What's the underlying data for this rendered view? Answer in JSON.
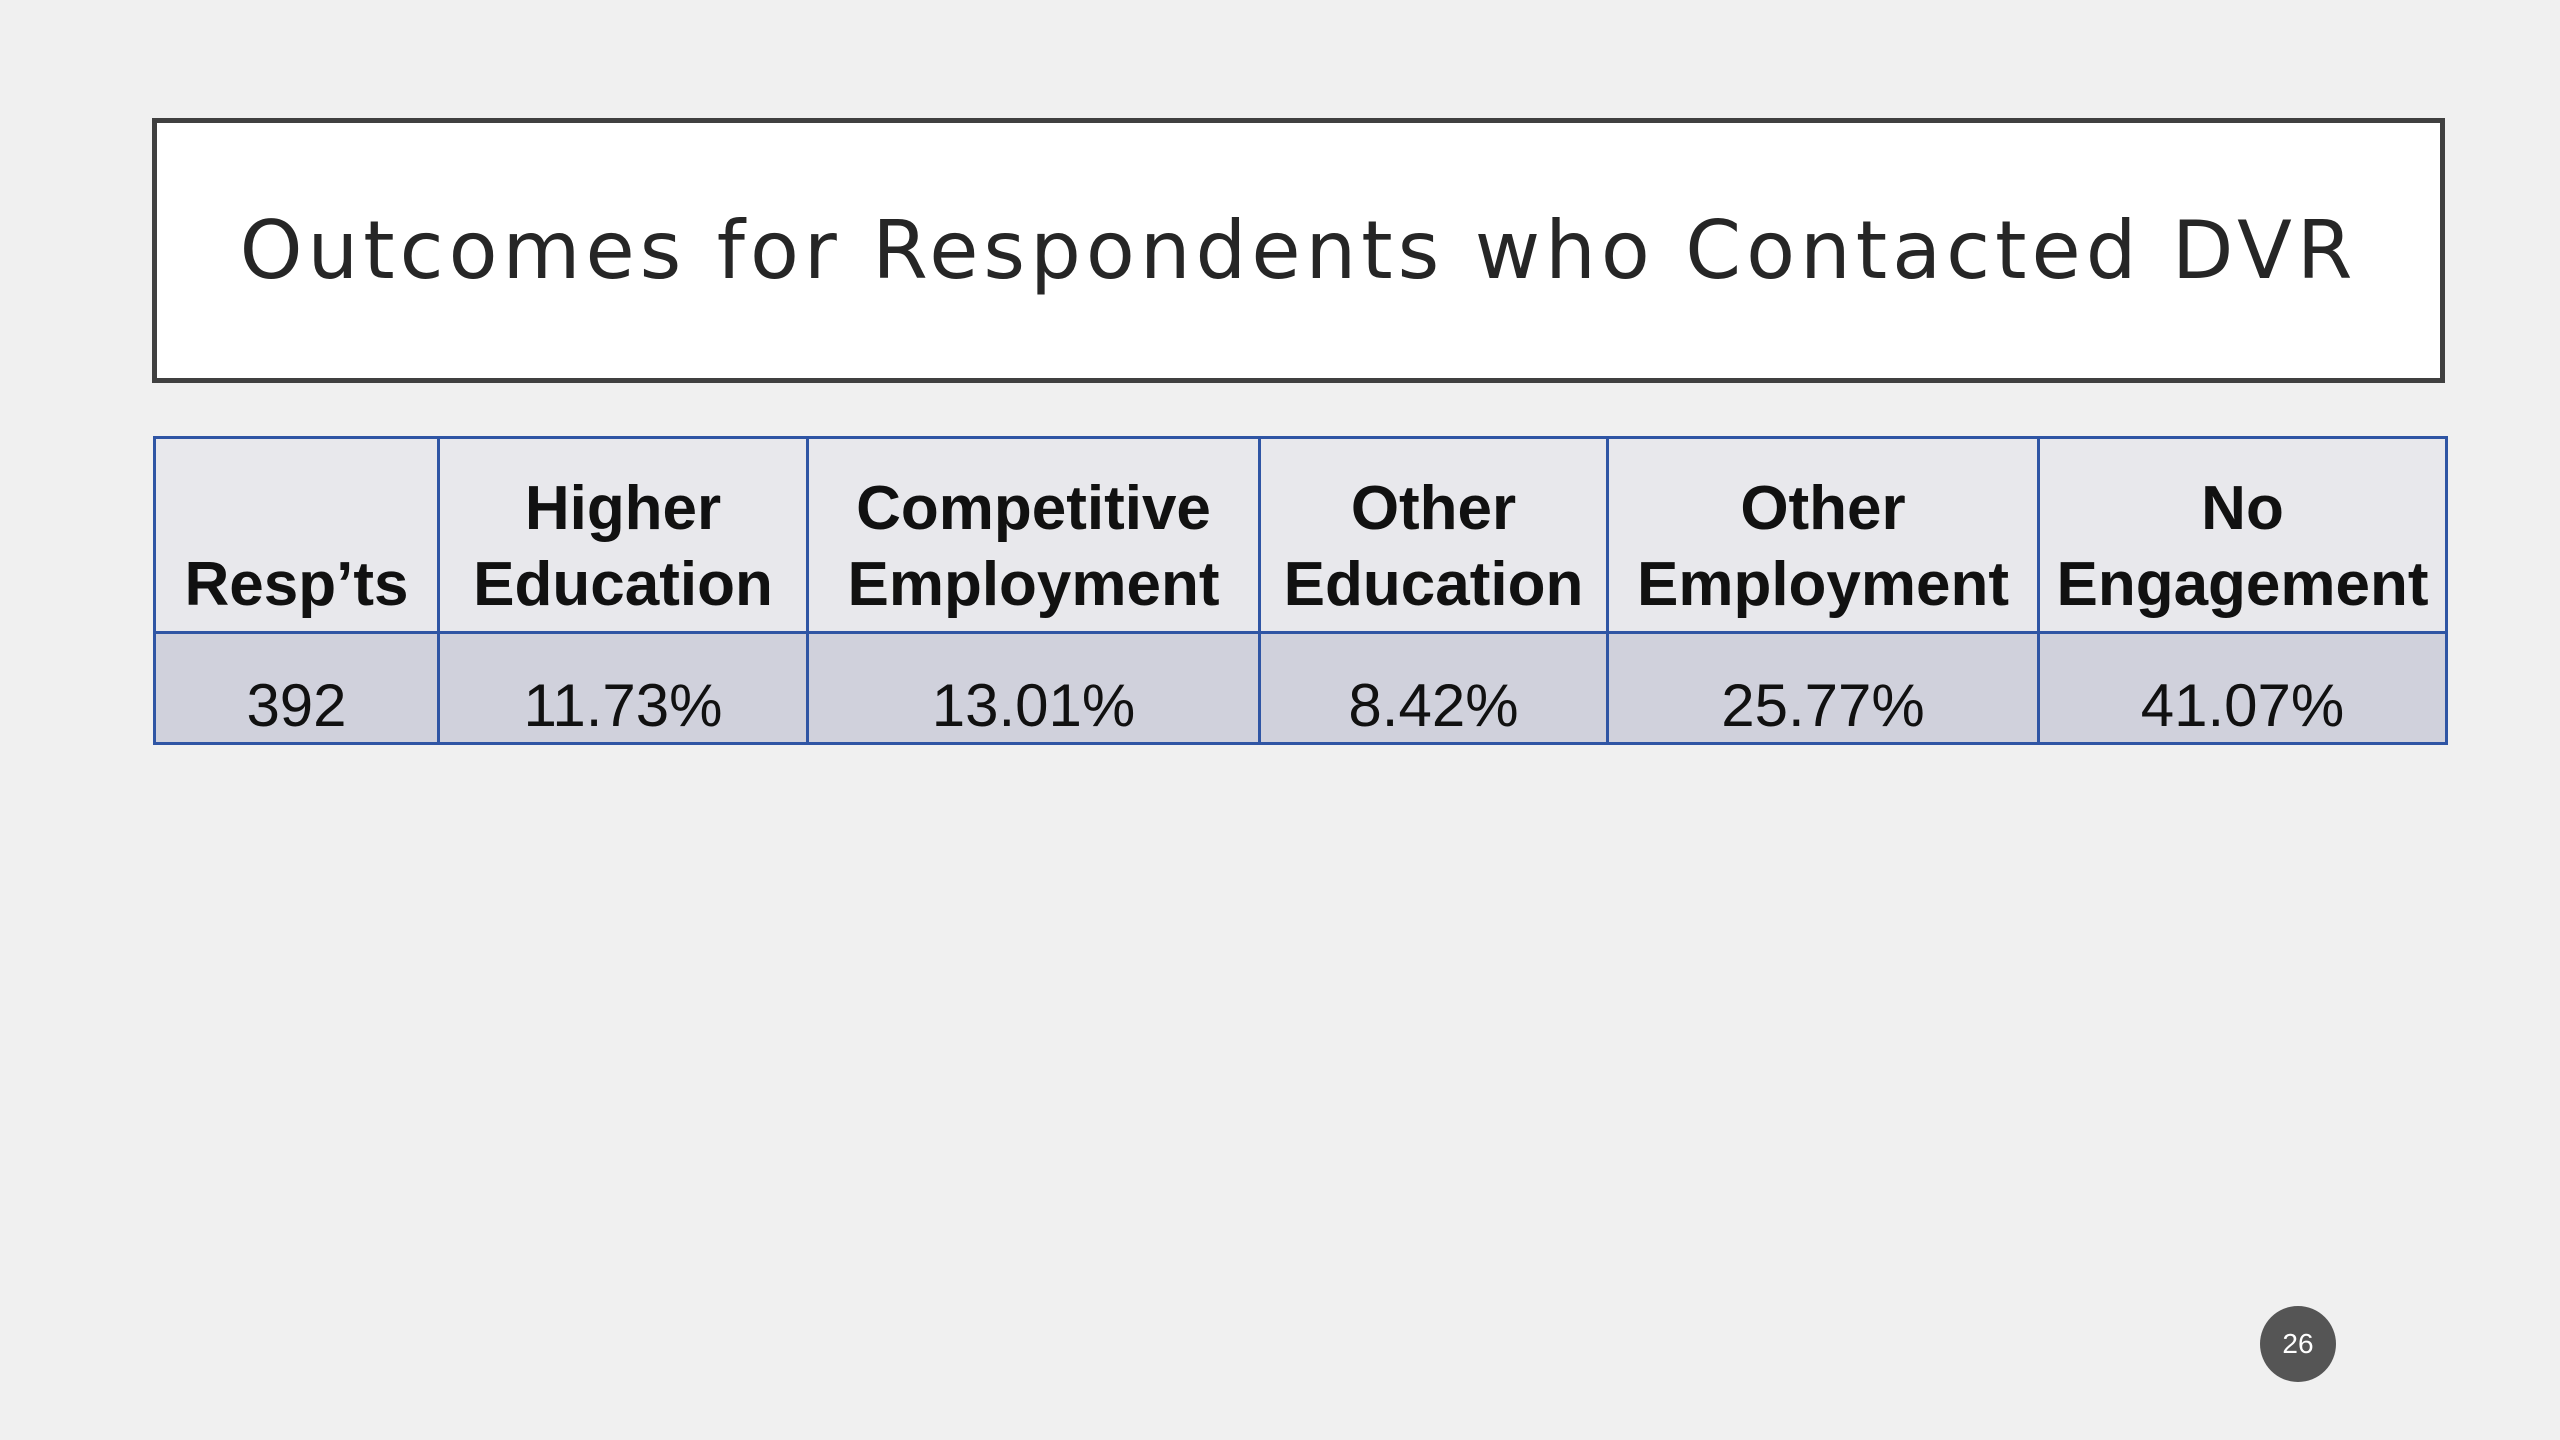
{
  "title": "Outcomes for Respondents who Contacted DVR",
  "table": {
    "header": [
      "Resp’ts",
      "Higher Education",
      "Competitive Employment",
      "Other Education",
      "Other Employment",
      "No Engagement"
    ],
    "rows": [
      [
        "392",
        "11.73%",
        "13.01%",
        "8.42%",
        "25.77%",
        "41.07%"
      ]
    ]
  },
  "page_number": "26"
}
